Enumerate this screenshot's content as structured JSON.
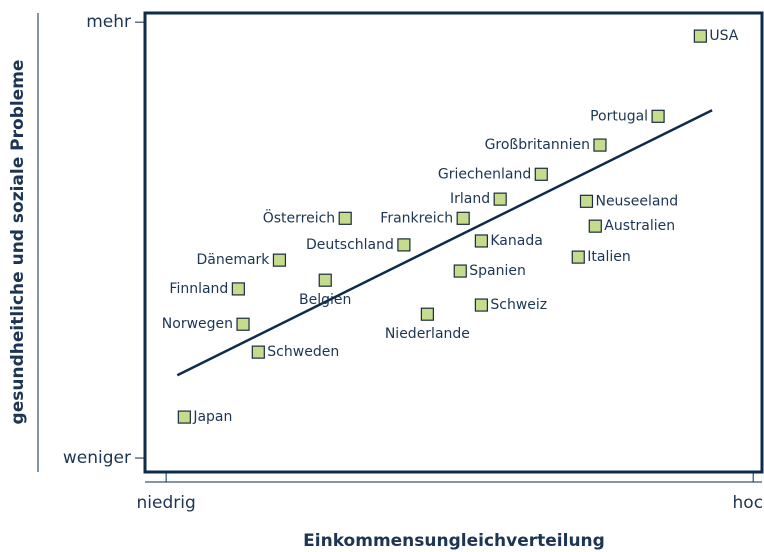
{
  "chart_data": {
    "type": "scatter",
    "x_label": "Einkommensungleichverteilung",
    "y_label": "gesundheitliche und soziale Probleme",
    "xlim": [
      -3.6,
      101.5
    ],
    "ylim": [
      -3.2,
      102.1
    ],
    "xticks": [
      {
        "value": 0,
        "label": "niedrig"
      },
      {
        "value": 100,
        "label": "hoch"
      }
    ],
    "yticks": [
      {
        "value": 0,
        "label": "weniger"
      },
      {
        "value": 100,
        "label": "mehr"
      }
    ],
    "color": "#c5dc8c",
    "line_color": "#0d2b4a",
    "labels": [
      "USA",
      "Portugal",
      "Großbritannien",
      "Griechenland",
      "Irland",
      "Neuseeland",
      "Österreich",
      "Frankreich",
      "Australien",
      "Deutschland",
      "Kanada",
      "Dänemark",
      "Italien",
      "Spanien",
      "Belgien",
      "Finnland",
      "Schweiz",
      "Niederlande",
      "Norwegen",
      "Schweden",
      "Japan"
    ],
    "x": [
      91.0,
      83.8,
      73.9,
      63.9,
      56.9,
      71.6,
      30.5,
      50.6,
      73.1,
      40.5,
      53.7,
      19.3,
      70.2,
      50.1,
      27.1,
      12.3,
      53.7,
      44.5,
      13.1,
      15.7,
      3.1
    ],
    "y": [
      96.8,
      78.4,
      71.8,
      65.1,
      59.4,
      58.9,
      55.0,
      55.0,
      53.2,
      48.9,
      49.8,
      45.4,
      46.1,
      42.9,
      40.8,
      38.8,
      35.1,
      33.0,
      30.7,
      24.3,
      9.4
    ],
    "trendline": {
      "x": [
        1.9,
        93.0
      ],
      "y": [
        19.0,
        79.8
      ]
    }
  }
}
